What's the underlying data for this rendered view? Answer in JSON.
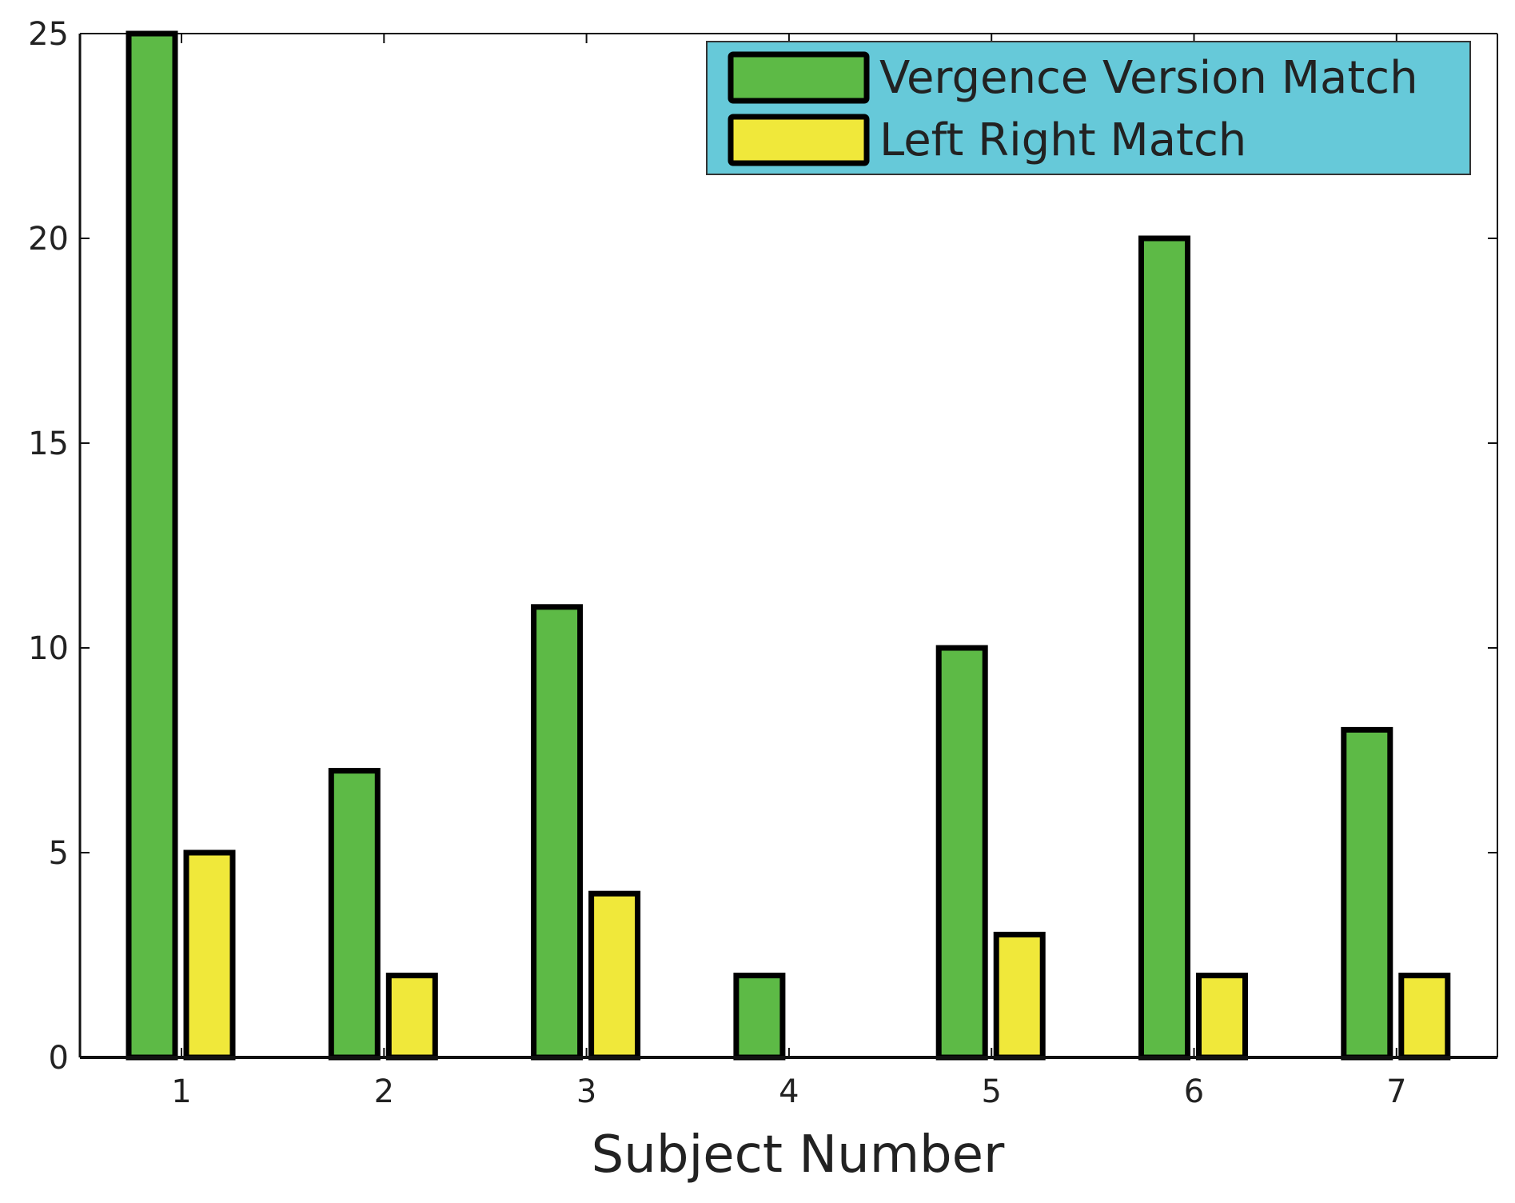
{
  "chart_data": {
    "type": "bar",
    "title": "",
    "xlabel": "Subject Number",
    "ylabel": "",
    "categories": [
      "1",
      "2",
      "3",
      "4",
      "5",
      "6",
      "7"
    ],
    "ylim": [
      0,
      25
    ],
    "yticks": [
      0,
      5,
      10,
      15,
      20,
      25
    ],
    "grid": false,
    "legend_position": "top-right",
    "legend_background": "#66c9d9",
    "series": [
      {
        "name": "Vergence Version Match",
        "color": "#5dba46",
        "values": [
          25,
          7,
          11,
          2,
          10,
          20,
          8
        ]
      },
      {
        "name": "Left Right Match",
        "color": "#f0e83a",
        "values": [
          5,
          2,
          4,
          0,
          3,
          2,
          2
        ]
      }
    ]
  }
}
